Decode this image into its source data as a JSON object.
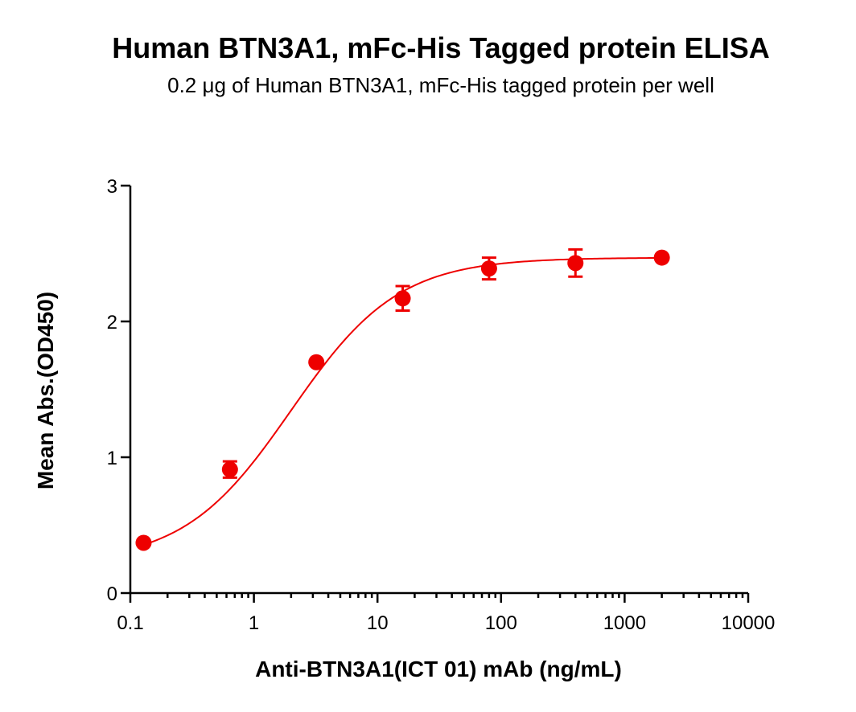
{
  "chart_data": {
    "type": "scatter",
    "title": "Human BTN3A1, mFc-His Tagged protein ELISA",
    "subtitle": "0.2 μg of Human BTN3A1, mFc-His tagged protein per well",
    "xlabel": "Anti-BTN3A1(ICT 01) mAb (ng/mL)",
    "ylabel": "Mean Abs.(OD450)",
    "xscale": "log",
    "xlim": [
      0.1,
      10000
    ],
    "ylim": [
      0,
      3
    ],
    "x_ticks": [
      "0.1",
      "1",
      "10",
      "100",
      "1000",
      "10000"
    ],
    "y_ticks": [
      "0",
      "1",
      "2",
      "3"
    ],
    "color": "#ee0000",
    "grid": false,
    "series": [
      {
        "x": [
          0.128,
          0.64,
          3.2,
          16,
          80,
          400,
          2000
        ],
        "y": [
          0.37,
          0.91,
          1.7,
          2.17,
          2.39,
          2.43,
          2.47
        ],
        "error": [
          0.02,
          0.06,
          0.02,
          0.09,
          0.08,
          0.1,
          0.02
        ]
      }
    ],
    "fit": {
      "model": "4PL",
      "bottom": 0.22,
      "top": 2.47,
      "ec50": 2.0,
      "hill": 1.0
    }
  }
}
